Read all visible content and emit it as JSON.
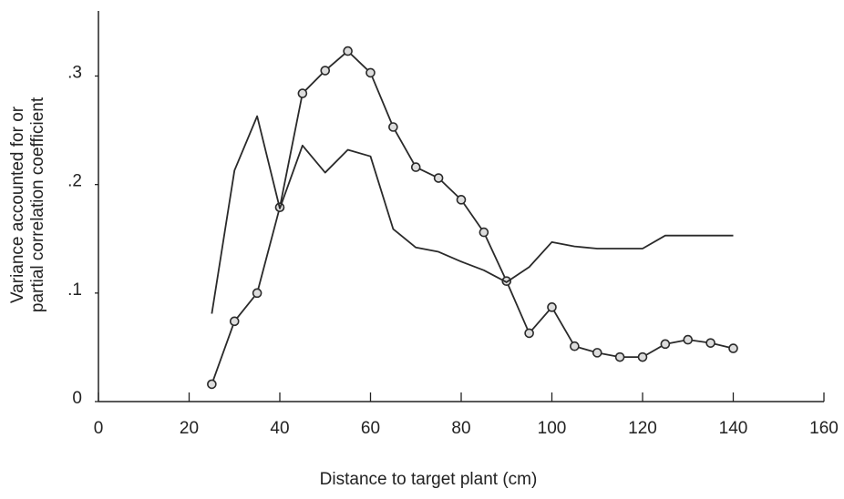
{
  "chart_data": {
    "type": "line",
    "xlabel": "Distance to target plant  (cm)",
    "ylabel": [
      "Variance accounted for or",
      "partial correlation coefficient"
    ],
    "xlim": [
      0,
      160
    ],
    "xticks": [
      0,
      20,
      40,
      60,
      80,
      100,
      120,
      140,
      160
    ],
    "ylim": [
      0,
      0.36
    ],
    "yticks": [
      0,
      {
        "value": 0.1,
        "label": ".1"
      },
      {
        "value": 0.2,
        "label": ".2"
      },
      {
        "value": 0.3,
        "label": ".3"
      }
    ],
    "grid": false,
    "series": [
      {
        "color": "#2a2a2a",
        "marker": "circle",
        "x": [
          25,
          30,
          35,
          40,
          45,
          50,
          55,
          60,
          65,
          70,
          75,
          80,
          85,
          90,
          95,
          100,
          105,
          110,
          115,
          120,
          125,
          130,
          135,
          140
        ],
        "values": [
          0.016,
          0.074,
          0.1,
          0.179,
          0.284,
          0.305,
          0.323,
          0.303,
          0.253,
          0.216,
          0.206,
          0.186,
          0.156,
          0.111,
          0.063,
          0.087,
          0.051,
          0.045,
          0.041,
          0.041,
          0.053,
          0.057,
          0.054,
          0.049
        ]
      },
      {
        "color": "#2a2a2a",
        "marker": "none",
        "x": [
          25,
          30,
          35,
          40,
          45,
          50,
          55,
          60,
          65,
          70,
          75,
          80,
          85,
          90,
          95,
          100,
          105,
          110,
          120,
          125,
          140
        ],
        "values": [
          0.081,
          0.213,
          0.263,
          0.178,
          0.236,
          0.211,
          0.232,
          0.226,
          0.159,
          0.142,
          0.138,
          0.129,
          0.121,
          0.11,
          0.124,
          0.147,
          0.143,
          0.141,
          0.141,
          0.153,
          0.153
        ]
      }
    ]
  }
}
